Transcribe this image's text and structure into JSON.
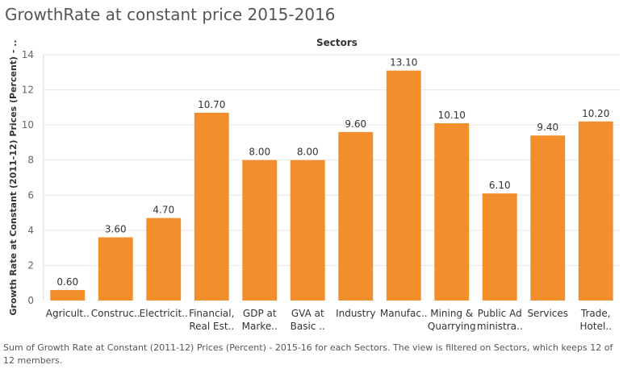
{
  "title": "GrowthRate at constant price 2015-2016",
  "caption": "Sum of Growth Rate at Constant (2011-12) Prices (Percent) - 2015-16 for each Sectors. The view is filtered on Sectors, which keeps 12 of 12 members.",
  "colors": {
    "bar": "#f28e2b",
    "grid": "#e6e6e6"
  },
  "chart_data": {
    "type": "bar",
    "title": "Sectors",
    "ylabel": "Growth Rate at Constant (2011-12) Prices (Percent) - ..",
    "xlabel": "",
    "ylim": [
      0,
      14
    ],
    "yticks": [
      "0",
      "2",
      "4",
      "6",
      "8",
      "10",
      "12",
      "14"
    ],
    "grid": true,
    "categories": [
      [
        "Agricult.."
      ],
      [
        "Construc.."
      ],
      [
        "Electricit.."
      ],
      [
        "Financial,",
        "Real Est.."
      ],
      [
        "GDP at",
        "Marke.."
      ],
      [
        "GVA at",
        "Basic .."
      ],
      [
        "Industry"
      ],
      [
        "Manufac.."
      ],
      [
        "Mining &",
        "Quarrying"
      ],
      [
        "Public Ad",
        "ministra.."
      ],
      [
        "Services"
      ],
      [
        "Trade,",
        "Hotel.."
      ]
    ],
    "values": [
      0.6,
      3.6,
      4.7,
      10.7,
      8.0,
      8.0,
      9.6,
      13.1,
      10.1,
      6.1,
      9.4,
      10.2
    ],
    "value_labels": [
      "0.60",
      "3.60",
      "4.70",
      "10.70",
      "8.00",
      "8.00",
      "9.60",
      "13.10",
      "10.10",
      "6.10",
      "9.40",
      "10.20"
    ]
  }
}
